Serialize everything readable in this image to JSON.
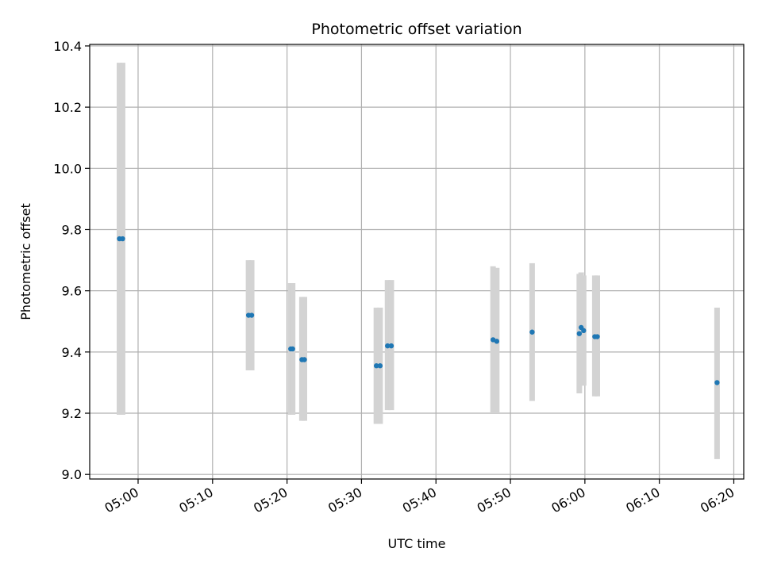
{
  "chart_data": {
    "type": "scatter",
    "title": "Photometric offset variation",
    "xlabel": "UTC time",
    "ylabel": "Photometric offset",
    "grid": true,
    "xlim": [
      "04:53:30",
      "06:21:20"
    ],
    "ylim": [
      8.985,
      10.405
    ],
    "xticks": [
      "05:00",
      "05:10",
      "05:20",
      "05:30",
      "05:40",
      "05:50",
      "06:00",
      "06:10",
      "06:20"
    ],
    "yticks": [
      9.0,
      9.2,
      9.4,
      9.6,
      9.8,
      10.0,
      10.2,
      10.4
    ],
    "yticklabels": [
      "9.0",
      "9.2",
      "9.4",
      "9.6",
      "9.8",
      "10.0",
      "10.2",
      "10.4"
    ],
    "colors": {
      "point": "#1f77b4",
      "errorbar": "#d3d3d3",
      "grid": "#b0b0b0"
    },
    "points": [
      {
        "t": "04:57:30",
        "y": 9.77,
        "lo": 9.195,
        "hi": 10.345
      },
      {
        "t": "04:57:55",
        "y": 9.77,
        "lo": 9.195,
        "hi": 10.345
      },
      {
        "t": "05:14:50",
        "y": 9.52,
        "lo": 9.34,
        "hi": 9.7
      },
      {
        "t": "05:15:15",
        "y": 9.52,
        "lo": 9.34,
        "hi": 9.7
      },
      {
        "t": "05:20:30",
        "y": 9.41,
        "lo": 9.195,
        "hi": 9.625
      },
      {
        "t": "05:20:45",
        "y": 9.41,
        "lo": 9.195,
        "hi": 9.625
      },
      {
        "t": "05:22:00",
        "y": 9.375,
        "lo": 9.175,
        "hi": 9.58
      },
      {
        "t": "05:22:20",
        "y": 9.375,
        "lo": 9.175,
        "hi": 9.58
      },
      {
        "t": "05:32:00",
        "y": 9.355,
        "lo": 9.165,
        "hi": 9.545
      },
      {
        "t": "05:32:30",
        "y": 9.355,
        "lo": 9.165,
        "hi": 9.545
      },
      {
        "t": "05:33:30",
        "y": 9.42,
        "lo": 9.21,
        "hi": 9.635
      },
      {
        "t": "05:34:00",
        "y": 9.42,
        "lo": 9.21,
        "hi": 9.635
      },
      {
        "t": "05:47:40",
        "y": 9.44,
        "lo": 9.2,
        "hi": 9.68
      },
      {
        "t": "05:48:10",
        "y": 9.435,
        "lo": 9.2,
        "hi": 9.675
      },
      {
        "t": "05:52:55",
        "y": 9.465,
        "lo": 9.24,
        "hi": 9.69
      },
      {
        "t": "05:59:15",
        "y": 9.46,
        "lo": 9.265,
        "hi": 9.655
      },
      {
        "t": "05:59:30",
        "y": 9.48,
        "lo": 9.29,
        "hi": 9.66
      },
      {
        "t": "05:59:50",
        "y": 9.47,
        "lo": 9.29,
        "hi": 9.65
      },
      {
        "t": "06:01:20",
        "y": 9.45,
        "lo": 9.255,
        "hi": 9.65
      },
      {
        "t": "06:01:40",
        "y": 9.45,
        "lo": 9.255,
        "hi": 9.65
      },
      {
        "t": "06:17:45",
        "y": 9.3,
        "lo": 9.05,
        "hi": 9.545
      }
    ]
  }
}
